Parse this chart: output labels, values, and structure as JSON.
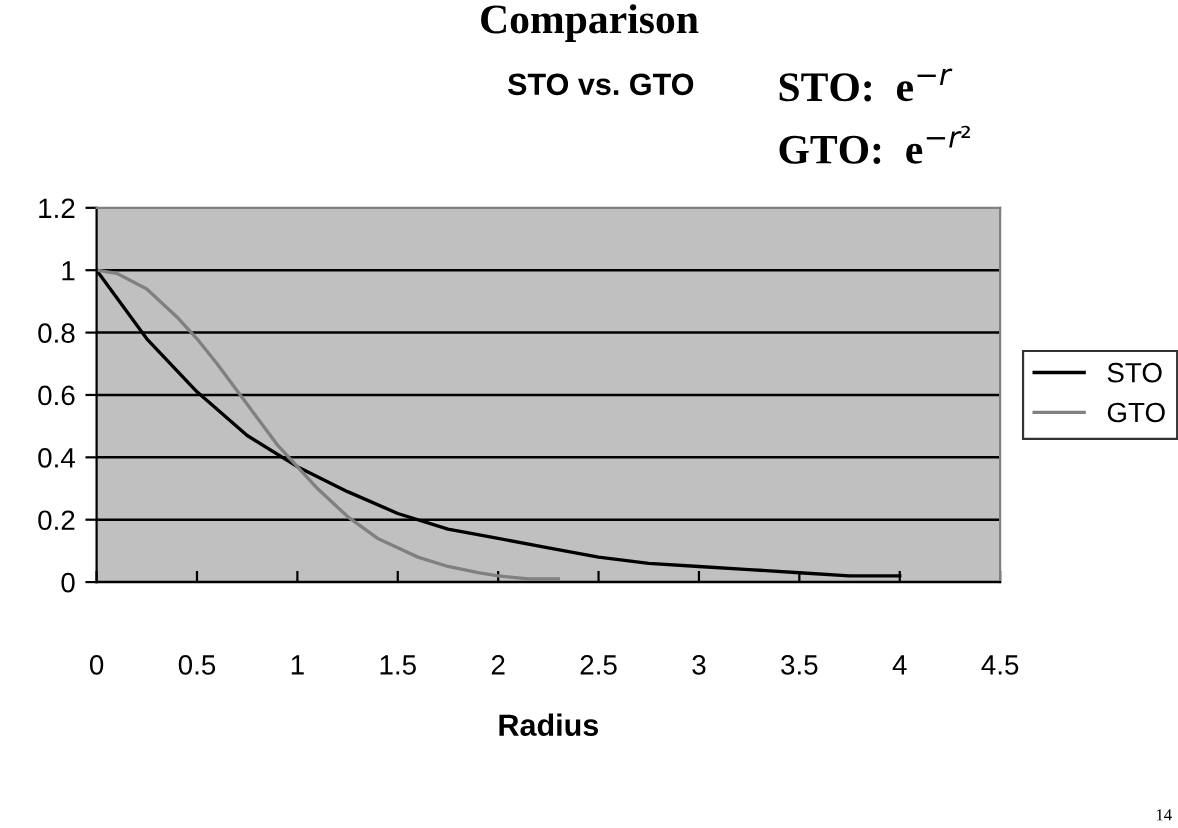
{
  "chart_data": {
    "type": "line",
    "title": "STO vs. GTO",
    "xlabel": "Radius",
    "annotations": [
      "Comparison",
      "STO:  e$^{−r}$",
      "GTO:  e$^{−r²}$",
      "14"
    ],
    "series": [
      {
        "name": "STO",
        "color": "#000000",
        "x": [
          0,
          0.25,
          0.5,
          0.75,
          1,
          1.25,
          1.5,
          1.75,
          2,
          2.25,
          2.5,
          2.75,
          3,
          3.25,
          3.5,
          3.75,
          4
        ],
        "values": [
          1,
          0.78,
          0.61,
          0.47,
          0.37,
          0.29,
          0.22,
          0.17,
          0.14,
          0.11,
          0.08,
          0.06,
          0.05,
          0.04,
          0.03,
          0.02,
          0.02
        ]
      },
      {
        "name": "GTO",
        "color": "#808080",
        "x": [
          0,
          0.1,
          0.25,
          0.4,
          0.5,
          0.6,
          0.75,
          0.9,
          1,
          1.1,
          1.25,
          1.4,
          1.5,
          1.6,
          1.75,
          1.9,
          2,
          2.15,
          2.3
        ],
        "values": [
          1,
          0.99,
          0.94,
          0.85,
          0.78,
          0.7,
          0.57,
          0.44,
          0.37,
          0.3,
          0.21,
          0.14,
          0.11,
          0.08,
          0.05,
          0.03,
          0.02,
          0.01,
          0.01
        ]
      }
    ],
    "xlim": [
      0,
      4.5
    ],
    "xticks": [
      0,
      0.5,
      1,
      1.5,
      2,
      2.5,
      3,
      3.5,
      4,
      4.5
    ],
    "ylim": [
      0,
      1.2
    ],
    "yticks": [
      0,
      0.2,
      0.4,
      0.6,
      0.8,
      1,
      1.2
    ],
    "grid": "y",
    "legend": "right",
    "marker": "none",
    "line_style": "solid"
  }
}
